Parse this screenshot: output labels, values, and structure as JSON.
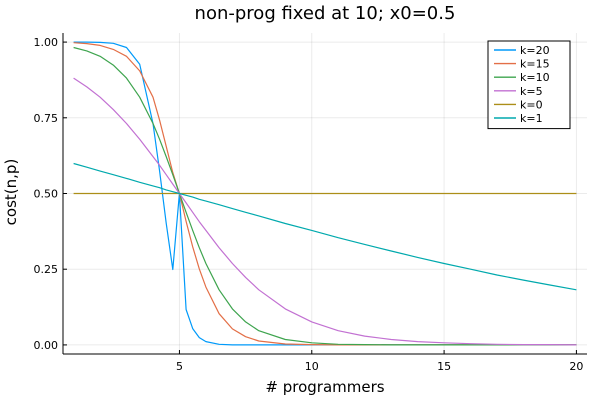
{
  "chart_data": {
    "type": "line",
    "title": "non-prog fixed at 10; x0=0.5",
    "xlabel": "# programmers",
    "ylabel": "cost(n,p)",
    "xlim": [
      0.6,
      20.4
    ],
    "ylim": [
      -0.03,
      1.03
    ],
    "xticks": [
      5,
      10,
      15,
      20
    ],
    "xtick_labels": [
      "5",
      "10",
      "15",
      "20"
    ],
    "yticks": [
      0,
      0.25,
      0.5,
      0.75,
      1.0
    ],
    "ytick_labels": [
      "0.00",
      "0.25",
      "0.50",
      "0.75",
      "1.00"
    ],
    "grid": true,
    "legend_position": "top-right",
    "x": [
      1,
      1.5,
      2,
      2.5,
      3,
      3.5,
      4,
      4.25,
      4.5,
      4.75,
      5,
      5.25,
      5.5,
      5.75,
      6,
      6.5,
      7,
      7.5,
      8,
      9,
      10,
      11,
      12,
      13,
      14,
      15,
      16,
      17,
      18,
      19,
      20
    ],
    "series": [
      {
        "name": "k=20",
        "color": "#009AFA",
        "values": [
          1.0,
          1.0,
          0.999,
          0.996,
          0.982,
          0.927,
          0.731,
          0.574,
          0.402,
          0.249,
          0.5,
          0.117,
          0.054,
          0.024,
          0.011,
          0.002,
          0.0,
          0.0,
          0.0,
          0.0,
          0.0,
          0.0,
          0.0,
          0.0,
          0.0,
          0.0,
          0.0,
          0.0,
          0.0,
          0.0,
          0.0
        ]
      },
      {
        "name": "k=15",
        "color": "#E36F47",
        "values": [
          0.998,
          0.995,
          0.989,
          0.976,
          0.953,
          0.905,
          0.818,
          0.742,
          0.656,
          0.569,
          0.5,
          0.408,
          0.324,
          0.251,
          0.191,
          0.103,
          0.053,
          0.027,
          0.013,
          0.003,
          0.001,
          0.0,
          0.0,
          0.0,
          0.0,
          0.0,
          0.0,
          0.0,
          0.0,
          0.0,
          0.0
        ]
      },
      {
        "name": "k=10",
        "color": "#3EA44E",
        "values": [
          0.982,
          0.971,
          0.953,
          0.924,
          0.881,
          0.818,
          0.731,
          0.679,
          0.622,
          0.562,
          0.5,
          0.438,
          0.378,
          0.321,
          0.269,
          0.182,
          0.119,
          0.076,
          0.047,
          0.018,
          0.007,
          0.002,
          0.001,
          0.0,
          0.0,
          0.0,
          0.0,
          0.0,
          0.0,
          0.0,
          0.0
        ]
      },
      {
        "name": "k=5",
        "color": "#C271D2",
        "values": [
          0.881,
          0.852,
          0.818,
          0.777,
          0.731,
          0.679,
          0.622,
          0.593,
          0.562,
          0.531,
          0.5,
          0.469,
          0.438,
          0.407,
          0.378,
          0.321,
          0.269,
          0.223,
          0.182,
          0.119,
          0.076,
          0.047,
          0.029,
          0.018,
          0.011,
          0.007,
          0.004,
          0.002,
          0.001,
          0.001,
          0.0
        ]
      },
      {
        "name": "k=0",
        "color": "#AC8E18",
        "values": [
          0.5,
          0.5,
          0.5,
          0.5,
          0.5,
          0.5,
          0.5,
          0.5,
          0.5,
          0.5,
          0.5,
          0.5,
          0.5,
          0.5,
          0.5,
          0.5,
          0.5,
          0.5,
          0.5,
          0.5,
          0.5,
          0.5,
          0.5,
          0.5,
          0.5,
          0.5,
          0.5,
          0.5,
          0.5,
          0.5,
          0.5
        ]
      },
      {
        "name": "k=1",
        "color": "#00A9AD",
        "values": [
          0.599,
          0.587,
          0.574,
          0.562,
          0.55,
          0.537,
          0.525,
          0.519,
          0.512,
          0.506,
          0.5,
          0.494,
          0.488,
          0.481,
          0.475,
          0.463,
          0.45,
          0.438,
          0.426,
          0.401,
          0.378,
          0.354,
          0.332,
          0.31,
          0.289,
          0.269,
          0.25,
          0.231,
          0.214,
          0.198,
          0.182
        ]
      }
    ]
  }
}
